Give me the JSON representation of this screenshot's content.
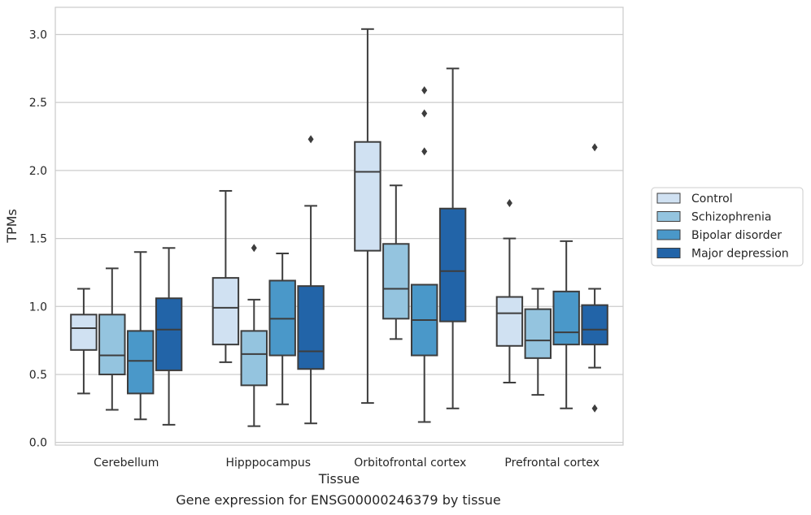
{
  "chart_data": {
    "type": "box",
    "title": "",
    "xlabel": "Tissue",
    "ylabel": "TPMs",
    "ylim": [
      -0.02,
      3.2
    ],
    "yticks": [
      "0.0",
      "0.5",
      "1.0",
      "1.5",
      "2.0",
      "2.5",
      "3.0"
    ],
    "grid": "horizontal",
    "legend_position": "right",
    "categories": [
      "Cerebellum",
      "Hipppocampus",
      "Orbitofrontal cortex",
      "Prefrontal cortex"
    ],
    "series": [
      {
        "name": "Control",
        "color": "#d0e1f2",
        "boxes": [
          {
            "whislo": 0.36,
            "q1": 0.68,
            "med": 0.84,
            "q3": 0.94,
            "whishi": 1.13,
            "fliers": []
          },
          {
            "whislo": 0.59,
            "q1": 0.72,
            "med": 0.99,
            "q3": 1.21,
            "whishi": 1.85,
            "fliers": []
          },
          {
            "whislo": 0.29,
            "q1": 1.41,
            "med": 1.99,
            "q3": 2.21,
            "whishi": 3.04,
            "fliers": []
          },
          {
            "whislo": 0.44,
            "q1": 0.71,
            "med": 0.95,
            "q3": 1.07,
            "whishi": 1.5,
            "fliers": [
              1.76
            ]
          }
        ]
      },
      {
        "name": "Schizophrenia",
        "color": "#94c4df",
        "boxes": [
          {
            "whislo": 0.24,
            "q1": 0.5,
            "med": 0.64,
            "q3": 0.94,
            "whishi": 1.28,
            "fliers": []
          },
          {
            "whislo": 0.12,
            "q1": 0.42,
            "med": 0.65,
            "q3": 0.82,
            "whishi": 1.05,
            "fliers": [
              1.43
            ]
          },
          {
            "whislo": 0.76,
            "q1": 0.91,
            "med": 1.13,
            "q3": 1.46,
            "whishi": 1.89,
            "fliers": []
          },
          {
            "whislo": 0.35,
            "q1": 0.62,
            "med": 0.75,
            "q3": 0.98,
            "whishi": 1.13,
            "fliers": []
          }
        ]
      },
      {
        "name": "Bipolar disorder",
        "color": "#4a98c9",
        "boxes": [
          {
            "whislo": 0.17,
            "q1": 0.36,
            "med": 0.6,
            "q3": 0.82,
            "whishi": 1.4,
            "fliers": []
          },
          {
            "whislo": 0.28,
            "q1": 0.64,
            "med": 0.91,
            "q3": 1.19,
            "whishi": 1.39,
            "fliers": []
          },
          {
            "whislo": 0.15,
            "q1": 0.64,
            "med": 0.9,
            "q3": 1.16,
            "whishi": 1.16,
            "fliers": [
              2.14,
              2.42,
              2.59
            ]
          },
          {
            "whislo": 0.25,
            "q1": 0.72,
            "med": 0.81,
            "q3": 1.11,
            "whishi": 1.48,
            "fliers": []
          }
        ]
      },
      {
        "name": "Major depression",
        "color": "#2264a8",
        "boxes": [
          {
            "whislo": 0.13,
            "q1": 0.53,
            "med": 0.83,
            "q3": 1.06,
            "whishi": 1.43,
            "fliers": []
          },
          {
            "whislo": 0.14,
            "q1": 0.54,
            "med": 0.67,
            "q3": 1.15,
            "whishi": 1.74,
            "fliers": [
              2.23
            ]
          },
          {
            "whislo": 0.25,
            "q1": 0.89,
            "med": 1.26,
            "q3": 1.72,
            "whishi": 2.75,
            "fliers": []
          },
          {
            "whislo": 0.55,
            "q1": 0.72,
            "med": 0.83,
            "q3": 1.01,
            "whishi": 1.13,
            "fliers": [
              0.25,
              2.17
            ]
          }
        ]
      }
    ]
  },
  "caption": "Gene expression for ENSG00000246379 by tissue"
}
